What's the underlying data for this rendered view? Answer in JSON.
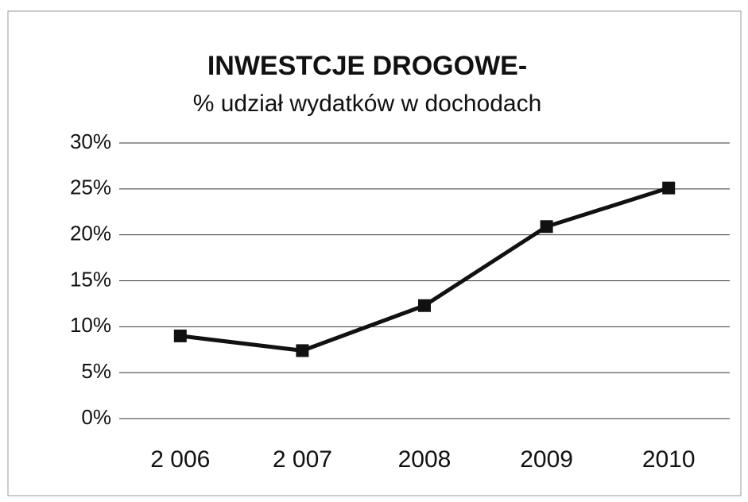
{
  "chart_data": {
    "type": "line",
    "title": "INWESTCJE DROGOWE-",
    "subtitle": "% udział wydatków w dochodach",
    "categories": [
      "2 006",
      "2 007",
      "2008",
      "2009",
      "2010"
    ],
    "series": [
      {
        "name": "udział",
        "color": "#111111",
        "values": [
          9.0,
          7.4,
          12.3,
          20.9,
          25.1
        ]
      }
    ],
    "ylim": [
      0,
      30
    ],
    "yticks": [
      {
        "value": 0,
        "label": "0%"
      },
      {
        "value": 5,
        "label": "5%"
      },
      {
        "value": 10,
        "label": "10%"
      },
      {
        "value": 15,
        "label": "15%"
      },
      {
        "value": 20,
        "label": "20%"
      },
      {
        "value": 25,
        "label": "25%"
      },
      {
        "value": 30,
        "label": "30%"
      }
    ],
    "grid": true
  }
}
